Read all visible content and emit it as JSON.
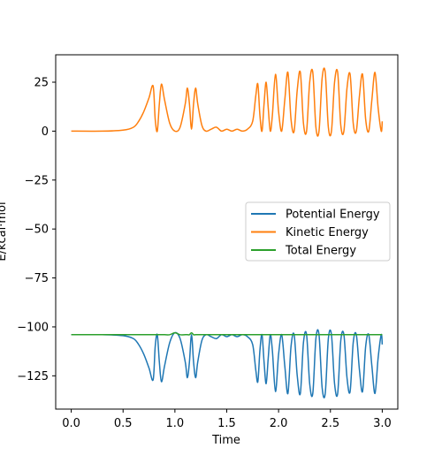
{
  "chart_data": {
    "type": "line",
    "title": "",
    "xlabel": "Time",
    "ylabel": "E/kcal·mol",
    "xlim": [
      -0.15,
      3.15
    ],
    "ylim": [
      -142,
      39
    ],
    "x_ticks": [
      0.0,
      0.5,
      1.0,
      1.5,
      2.0,
      2.5,
      3.0
    ],
    "x_tick_labels": [
      "0.0",
      "0.5",
      "1.0",
      "1.5",
      "2.0",
      "2.5",
      "3.0"
    ],
    "y_ticks": [
      25,
      0,
      -25,
      -50,
      -75,
      -100,
      -125
    ],
    "y_tick_labels": [
      "25",
      "0",
      "−25",
      "−50",
      "−75",
      "−100",
      "−125"
    ],
    "grid": false,
    "legend_position": "center-right",
    "series": [
      {
        "name": "Potential Energy",
        "color": "#1f77b4",
        "x": [
          0.0,
          0.3,
          0.5,
          0.6,
          0.65,
          0.7,
          0.75,
          0.79,
          0.81,
          0.83,
          0.85,
          0.87,
          0.9,
          0.95,
          1.0,
          1.05,
          1.1,
          1.12,
          1.14,
          1.16,
          1.18,
          1.2,
          1.22,
          1.26,
          1.3,
          1.35,
          1.4,
          1.45,
          1.5,
          1.55,
          1.6,
          1.65,
          1.7,
          1.75,
          1.78,
          1.8,
          1.82,
          1.84,
          1.86,
          1.88,
          1.9,
          1.92,
          1.94,
          1.97,
          2.0,
          2.03,
          2.06,
          2.09,
          2.12,
          2.15,
          2.18,
          2.21,
          2.24,
          2.27,
          2.3,
          2.33,
          2.36,
          2.39,
          2.42,
          2.45,
          2.48,
          2.51,
          2.54,
          2.57,
          2.6,
          2.63,
          2.66,
          2.69,
          2.72,
          2.75,
          2.78,
          2.81,
          2.84,
          2.87,
          2.9,
          2.93,
          2.96,
          2.99,
          3.0
        ],
        "y": [
          -104,
          -104,
          -104.5,
          -106,
          -109,
          -114,
          -121,
          -127,
          -110,
          -104,
          -118,
          -128,
          -120,
          -108,
          -103,
          -106,
          -118,
          -126,
          -118,
          -104,
          -118,
          -126,
          -118,
          -107,
          -104,
          -105,
          -106,
          -104,
          -105,
          -104,
          -105,
          -104,
          -105,
          -109,
          -122,
          -128,
          -112,
          -104,
          -118,
          -129,
          -116,
          -104,
          -112,
          -133,
          -114,
          -104,
          -120,
          -134,
          -110,
          -104,
          -125,
          -134,
          -108,
          -104,
          -129,
          -134,
          -106,
          -104,
          -131,
          -134,
          -106,
          -104,
          -129,
          -134,
          -107,
          -104,
          -126,
          -133,
          -108,
          -104,
          -122,
          -133,
          -110,
          -104,
          -120,
          -134,
          -116,
          -104,
          -109
        ]
      },
      {
        "name": "Kinetic Energy",
        "color": "#ff7f0e",
        "x": [
          0.0,
          0.3,
          0.5,
          0.6,
          0.65,
          0.7,
          0.75,
          0.79,
          0.81,
          0.83,
          0.85,
          0.87,
          0.9,
          0.95,
          1.0,
          1.05,
          1.1,
          1.12,
          1.14,
          1.16,
          1.18,
          1.2,
          1.22,
          1.26,
          1.3,
          1.35,
          1.4,
          1.45,
          1.5,
          1.55,
          1.6,
          1.65,
          1.7,
          1.75,
          1.78,
          1.8,
          1.82,
          1.84,
          1.86,
          1.88,
          1.9,
          1.92,
          1.94,
          1.97,
          2.0,
          2.03,
          2.06,
          2.09,
          2.12,
          2.15,
          2.18,
          2.21,
          2.24,
          2.27,
          2.3,
          2.33,
          2.36,
          2.39,
          2.42,
          2.45,
          2.48,
          2.51,
          2.54,
          2.57,
          2.6,
          2.63,
          2.66,
          2.69,
          2.72,
          2.75,
          2.78,
          2.81,
          2.84,
          2.87,
          2.9,
          2.93,
          2.96,
          2.99,
          3.0
        ],
        "y": [
          0,
          0,
          0.5,
          2,
          5,
          10,
          17,
          23,
          6,
          0,
          14,
          24,
          16,
          4,
          0,
          2,
          14,
          22,
          14,
          1,
          14,
          22,
          14,
          3,
          0,
          1,
          2,
          0,
          1,
          0,
          1,
          0,
          1,
          5,
          18,
          24,
          8,
          0,
          14,
          25,
          12,
          0,
          8,
          29,
          10,
          0,
          16,
          30,
          6,
          0,
          21,
          30,
          4,
          0,
          25,
          30,
          2,
          0,
          27,
          30,
          2,
          0,
          25,
          30,
          3,
          0,
          22,
          29,
          4,
          0,
          18,
          29,
          6,
          0,
          16,
          30,
          12,
          0,
          5
        ]
      },
      {
        "name": "Total Energy",
        "color": "#2ca02c",
        "x": [
          0.0,
          0.3,
          0.5,
          0.6,
          0.65,
          0.7,
          0.75,
          0.79,
          0.81,
          0.83,
          0.85,
          0.87,
          0.9,
          0.95,
          1.0,
          1.05,
          1.1,
          1.12,
          1.14,
          1.16,
          1.18,
          1.2,
          1.22,
          1.26,
          1.3,
          1.35,
          1.4,
          1.45,
          1.5,
          1.55,
          1.6,
          1.65,
          1.7,
          1.75,
          1.78,
          1.8,
          1.82,
          1.84,
          1.86,
          1.88,
          1.9,
          1.92,
          1.94,
          1.97,
          2.0,
          2.03,
          2.06,
          2.09,
          2.12,
          2.15,
          2.18,
          2.21,
          2.24,
          2.27,
          2.3,
          2.33,
          2.36,
          2.39,
          2.42,
          2.45,
          2.48,
          2.51,
          2.54,
          2.57,
          2.6,
          2.63,
          2.66,
          2.69,
          2.72,
          2.75,
          2.78,
          2.81,
          2.84,
          2.87,
          2.9,
          2.93,
          2.96,
          2.99,
          3.0
        ],
        "y": [
          -104,
          -104,
          -104,
          -104,
          -104,
          -104,
          -104,
          -104,
          -104,
          -104,
          -104,
          -104,
          -104,
          -104,
          -103,
          -104,
          -104,
          -104,
          -104,
          -103,
          -104,
          -104,
          -104,
          -104,
          -104,
          -104,
          -104,
          -104,
          -104,
          -104,
          -104,
          -104,
          -104,
          -104,
          -104,
          -104,
          -104,
          -104,
          -104,
          -104,
          -104,
          -104,
          -104,
          -104,
          -104,
          -104,
          -104,
          -104,
          -104,
          -104,
          -104,
          -104,
          -104,
          -104,
          -104,
          -104,
          -104,
          -104,
          -104,
          -104,
          -104,
          -104,
          -104,
          -104,
          -104,
          -104,
          -104,
          -104,
          -104,
          -104,
          -104,
          -104,
          -104,
          -104,
          -104,
          -104,
          -104,
          -104,
          -104
        ]
      }
    ]
  }
}
